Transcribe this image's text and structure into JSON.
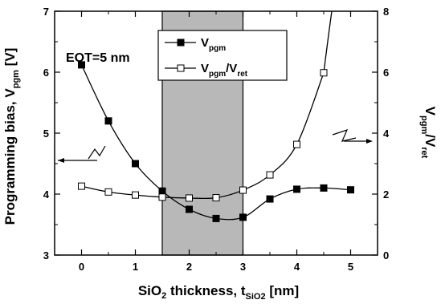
{
  "chart_data": {
    "type": "line",
    "x_axis": {
      "title_main": "SiO",
      "title_sub2": "2",
      "title_rest": " thickness, t",
      "title_sub": "SiO2",
      "title_unit": " [nm]",
      "range": [
        -0.5,
        5.5
      ],
      "ticks": [
        "0",
        "1",
        "2",
        "3",
        "4",
        "5"
      ]
    },
    "y_left": {
      "title_main": "Programming bias, V",
      "title_sub": "pgm",
      "title_unit": " [V]",
      "range": [
        3,
        7
      ],
      "ticks": [
        "3",
        "4",
        "5",
        "6",
        "7"
      ]
    },
    "y_right": {
      "title_main": "V",
      "title_sub1": "pgm",
      "title_mid": "/V",
      "title_sub2": "ret",
      "range": [
        0,
        8
      ],
      "ticks": [
        "0",
        "2",
        "4",
        "6",
        "8"
      ]
    },
    "shaded_region": {
      "x_start": 1.5,
      "x_end": 3.0,
      "color": "#b8b8b8"
    },
    "annotation": "EOT=5 nm",
    "series": [
      {
        "name_main": "V",
        "name_sub": "pgm",
        "axis": "left",
        "marker": "filled-square",
        "x": [
          0,
          0.5,
          1.0,
          1.5,
          2.0,
          2.5,
          3.0,
          3.5,
          4.0,
          4.5,
          5.0
        ],
        "y": [
          6.12,
          5.2,
          4.5,
          4.05,
          3.75,
          3.6,
          3.62,
          3.92,
          4.08,
          4.1,
          4.07
        ]
      },
      {
        "name_main": "V",
        "name_sub": "pgm",
        "name_mid": "/V",
        "name_sub2": "ret",
        "axis": "right",
        "marker": "open-square",
        "x": [
          0,
          0.5,
          1.0,
          1.5,
          2.0,
          2.5,
          3.0,
          3.5,
          4.0,
          4.5
        ],
        "y": [
          2.26,
          2.07,
          1.97,
          1.9,
          1.87,
          1.88,
          2.13,
          2.63,
          3.63,
          5.98
        ]
      }
    ],
    "legend_position": "top-center",
    "grid": false
  }
}
